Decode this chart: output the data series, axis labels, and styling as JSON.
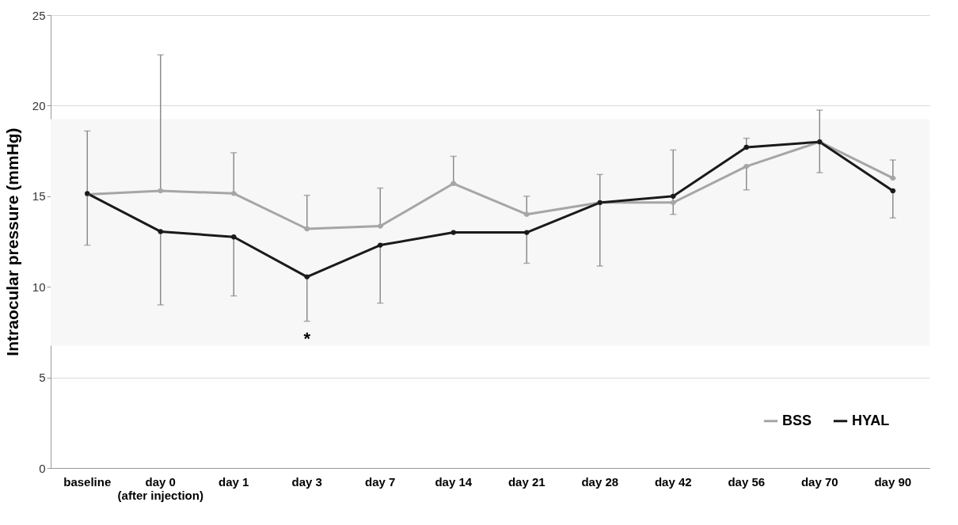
{
  "chart_data": {
    "type": "line",
    "ylabel": "Intraocular pressure (mmHg)",
    "categories": [
      "baseline",
      "day 0 (after injection)",
      "day 1",
      "day 3",
      "day 7",
      "day 14",
      "day 21",
      "day 28",
      "day 42",
      "day 56",
      "day 70",
      "day 90"
    ],
    "series": [
      {
        "name": "BSS",
        "color": "#a6a6a6",
        "values": [
          15.1,
          15.3,
          15.15,
          13.2,
          13.35,
          15.7,
          14.0,
          14.65,
          14.65,
          16.65,
          18.0,
          16.0
        ],
        "errors": [
          null,
          [
            15.3,
            22.8
          ],
          [
            15.15,
            17.4
          ],
          [
            13.2,
            15.05
          ],
          [
            13.35,
            15.45
          ],
          [
            15.7,
            17.2
          ],
          [
            14.0,
            15.0
          ],
          [
            14.65,
            16.2
          ],
          [
            14.65,
            17.55
          ],
          [
            15.35,
            16.65
          ],
          [
            16.3,
            18.0
          ],
          [
            16.0,
            17.0
          ]
        ]
      },
      {
        "name": "HYAL",
        "color": "#1a1a1a",
        "values": [
          15.15,
          13.05,
          12.75,
          10.55,
          12.3,
          13.0,
          13.0,
          14.65,
          15.0,
          17.7,
          18.0,
          15.3
        ],
        "errors": [
          [
            12.3,
            18.6
          ],
          [
            9.0,
            13.05
          ],
          [
            9.5,
            12.75
          ],
          [
            8.1,
            10.55
          ],
          [
            9.1,
            12.3
          ],
          null,
          [
            11.3,
            13.0
          ],
          [
            11.15,
            14.65
          ],
          [
            14.0,
            15.0
          ],
          [
            17.7,
            18.2
          ],
          [
            18.0,
            19.75
          ],
          [
            13.8,
            15.3
          ]
        ]
      }
    ],
    "ylim": [
      0,
      25
    ],
    "yticks": [
      0,
      5,
      10,
      15,
      20,
      25
    ],
    "bands": [
      {
        "axis": "y",
        "from": 6.75,
        "to": 19.25,
        "color": "#f7f7f7"
      }
    ],
    "annotations": [
      "*"
    ],
    "grid": "y",
    "legend": "bottom right",
    "marker": "circle",
    "line_style": "solid"
  }
}
